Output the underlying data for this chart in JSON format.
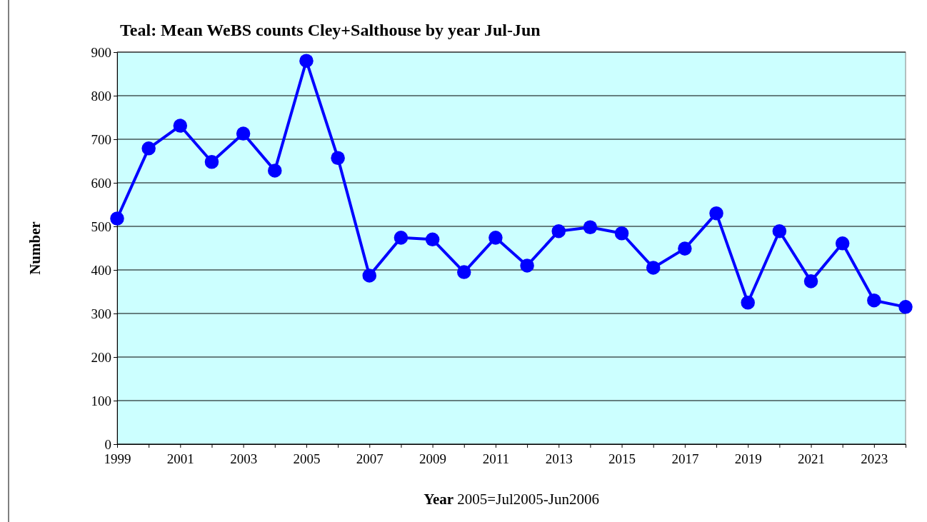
{
  "chart_data": {
    "type": "line",
    "title": "Teal: Mean WeBS counts Cley+Salthouse by year Jul-Jun",
    "xlabel": "Year 2005=Jul2005-Jun2006",
    "ylabel": "Number",
    "x": [
      1999,
      2000,
      2001,
      2002,
      2003,
      2004,
      2005,
      2006,
      2007,
      2008,
      2009,
      2010,
      2011,
      2012,
      2013,
      2014,
      2015,
      2016,
      2017,
      2018,
      2019,
      2020,
      2021,
      2022,
      2023,
      2024
    ],
    "series": [
      {
        "color": "#0000ff",
        "values": [
          518,
          679,
          731,
          648,
          713,
          628,
          880,
          657,
          387,
          474,
          470,
          395,
          474,
          410,
          489,
          498,
          484,
          405,
          449,
          530,
          325,
          489,
          374,
          461,
          330,
          315
        ]
      }
    ],
    "xlim": [
      1999,
      2024
    ],
    "xticks": [
      1999,
      {
        "value": 2000,
        "label": null
      },
      2001,
      {
        "value": 2002,
        "label": null
      },
      2003,
      {
        "value": 2004,
        "label": null
      },
      2005,
      {
        "value": 2006,
        "label": null
      },
      2007,
      {
        "value": 2008,
        "label": null
      },
      2009,
      {
        "value": 2010,
        "label": null
      },
      2011,
      {
        "value": 2012,
        "label": null
      },
      2013,
      {
        "value": 2014,
        "label": null
      },
      2015,
      {
        "value": 2016,
        "label": null
      },
      2017,
      {
        "value": 2018,
        "label": null
      },
      2019,
      {
        "value": 2020,
        "label": null
      },
      2021,
      {
        "value": 2022,
        "label": null
      },
      2023,
      {
        "value": 2024,
        "label": null
      }
    ],
    "ylim": [
      0,
      900
    ],
    "yticks": [
      0,
      100,
      200,
      300,
      400,
      500,
      600,
      700,
      800,
      900
    ],
    "grid": "y",
    "marker": "circle",
    "line_style": "solid"
  }
}
